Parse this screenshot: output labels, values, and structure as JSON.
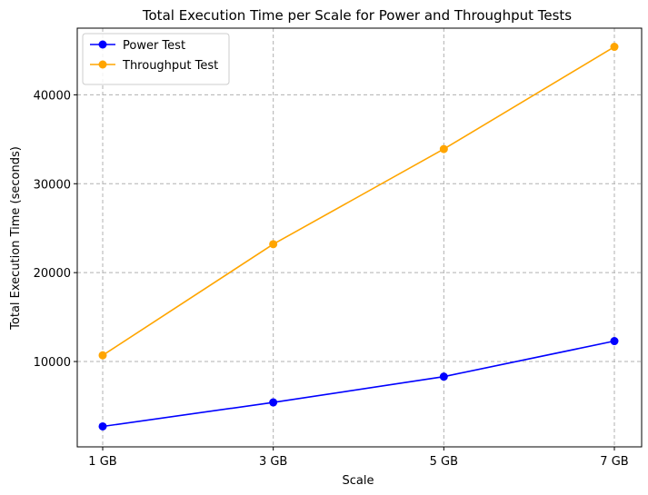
{
  "chart_data": {
    "type": "line",
    "title": "Total Execution Time per Scale for Power and Throughput Tests",
    "xlabel": "Scale",
    "ylabel": "Total Execution Time (seconds)",
    "categories": [
      "1 GB",
      "3 GB",
      "5 GB",
      "7 GB"
    ],
    "y_ticks": [
      10000,
      20000,
      30000,
      40000
    ],
    "ylim": [
      400,
      47500
    ],
    "grid": true,
    "legend_position": "top-left",
    "series": [
      {
        "name": "Power Test",
        "color": "#0000ff",
        "values": [
          2700,
          5400,
          8300,
          12300
        ]
      },
      {
        "name": "Throughput Test",
        "color": "#ffa500",
        "values": [
          10700,
          23200,
          33900,
          45400
        ]
      }
    ]
  }
}
